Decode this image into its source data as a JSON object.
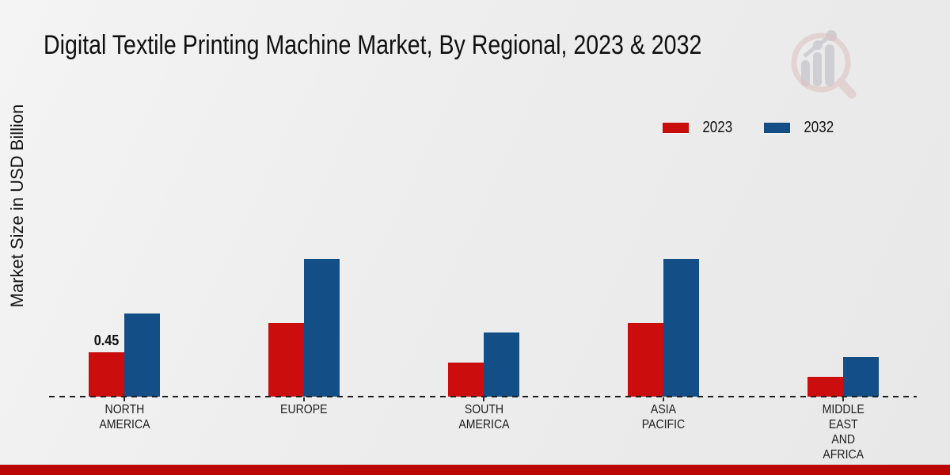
{
  "title": "Digital Textile Printing Machine Market, By Regional, 2023 & 2032",
  "y_axis_label": "Market Size in USD Billion",
  "legend": [
    {
      "label": "2023",
      "color": "#cc0d0d"
    },
    {
      "label": "2032",
      "color": "#134f86"
    }
  ],
  "colors": {
    "series_2023": "#cc0d0d",
    "series_2032": "#134f86",
    "footer_bar": "#bb0702",
    "baseline": "#1f1f1f",
    "watermark_pink": "#dcbfbf",
    "watermark_gray": "#cfcfd3"
  },
  "chart_data": {
    "type": "bar",
    "title": "Digital Textile Printing Machine Market, By Regional, 2023 & 2032",
    "xlabel": "",
    "ylabel": "Market Size in USD Billion",
    "categories": [
      "NORTH AMERICA",
      "EUROPE",
      "SOUTH AMERICA",
      "ASIA PACIFIC",
      "MIDDLE EAST AND AFRICA"
    ],
    "series": [
      {
        "name": "2023",
        "color": "#cc0d0d",
        "values": [
          0.45,
          0.75,
          0.35,
          0.75,
          0.2
        ]
      },
      {
        "name": "2032",
        "color": "#134f86",
        "values": [
          0.85,
          1.4,
          0.65,
          1.4,
          0.4
        ]
      }
    ],
    "annotations": [
      {
        "category_index": 0,
        "series_index": 0,
        "text": "0.45"
      }
    ],
    "axis": {
      "baseline_style": "dashed",
      "gridlines": false,
      "y_ticks_visible": false
    },
    "legend_position": "top-right",
    "ylim": [
      0,
      1.6
    ]
  },
  "watermark_name": "market-research-magnifier-logo"
}
